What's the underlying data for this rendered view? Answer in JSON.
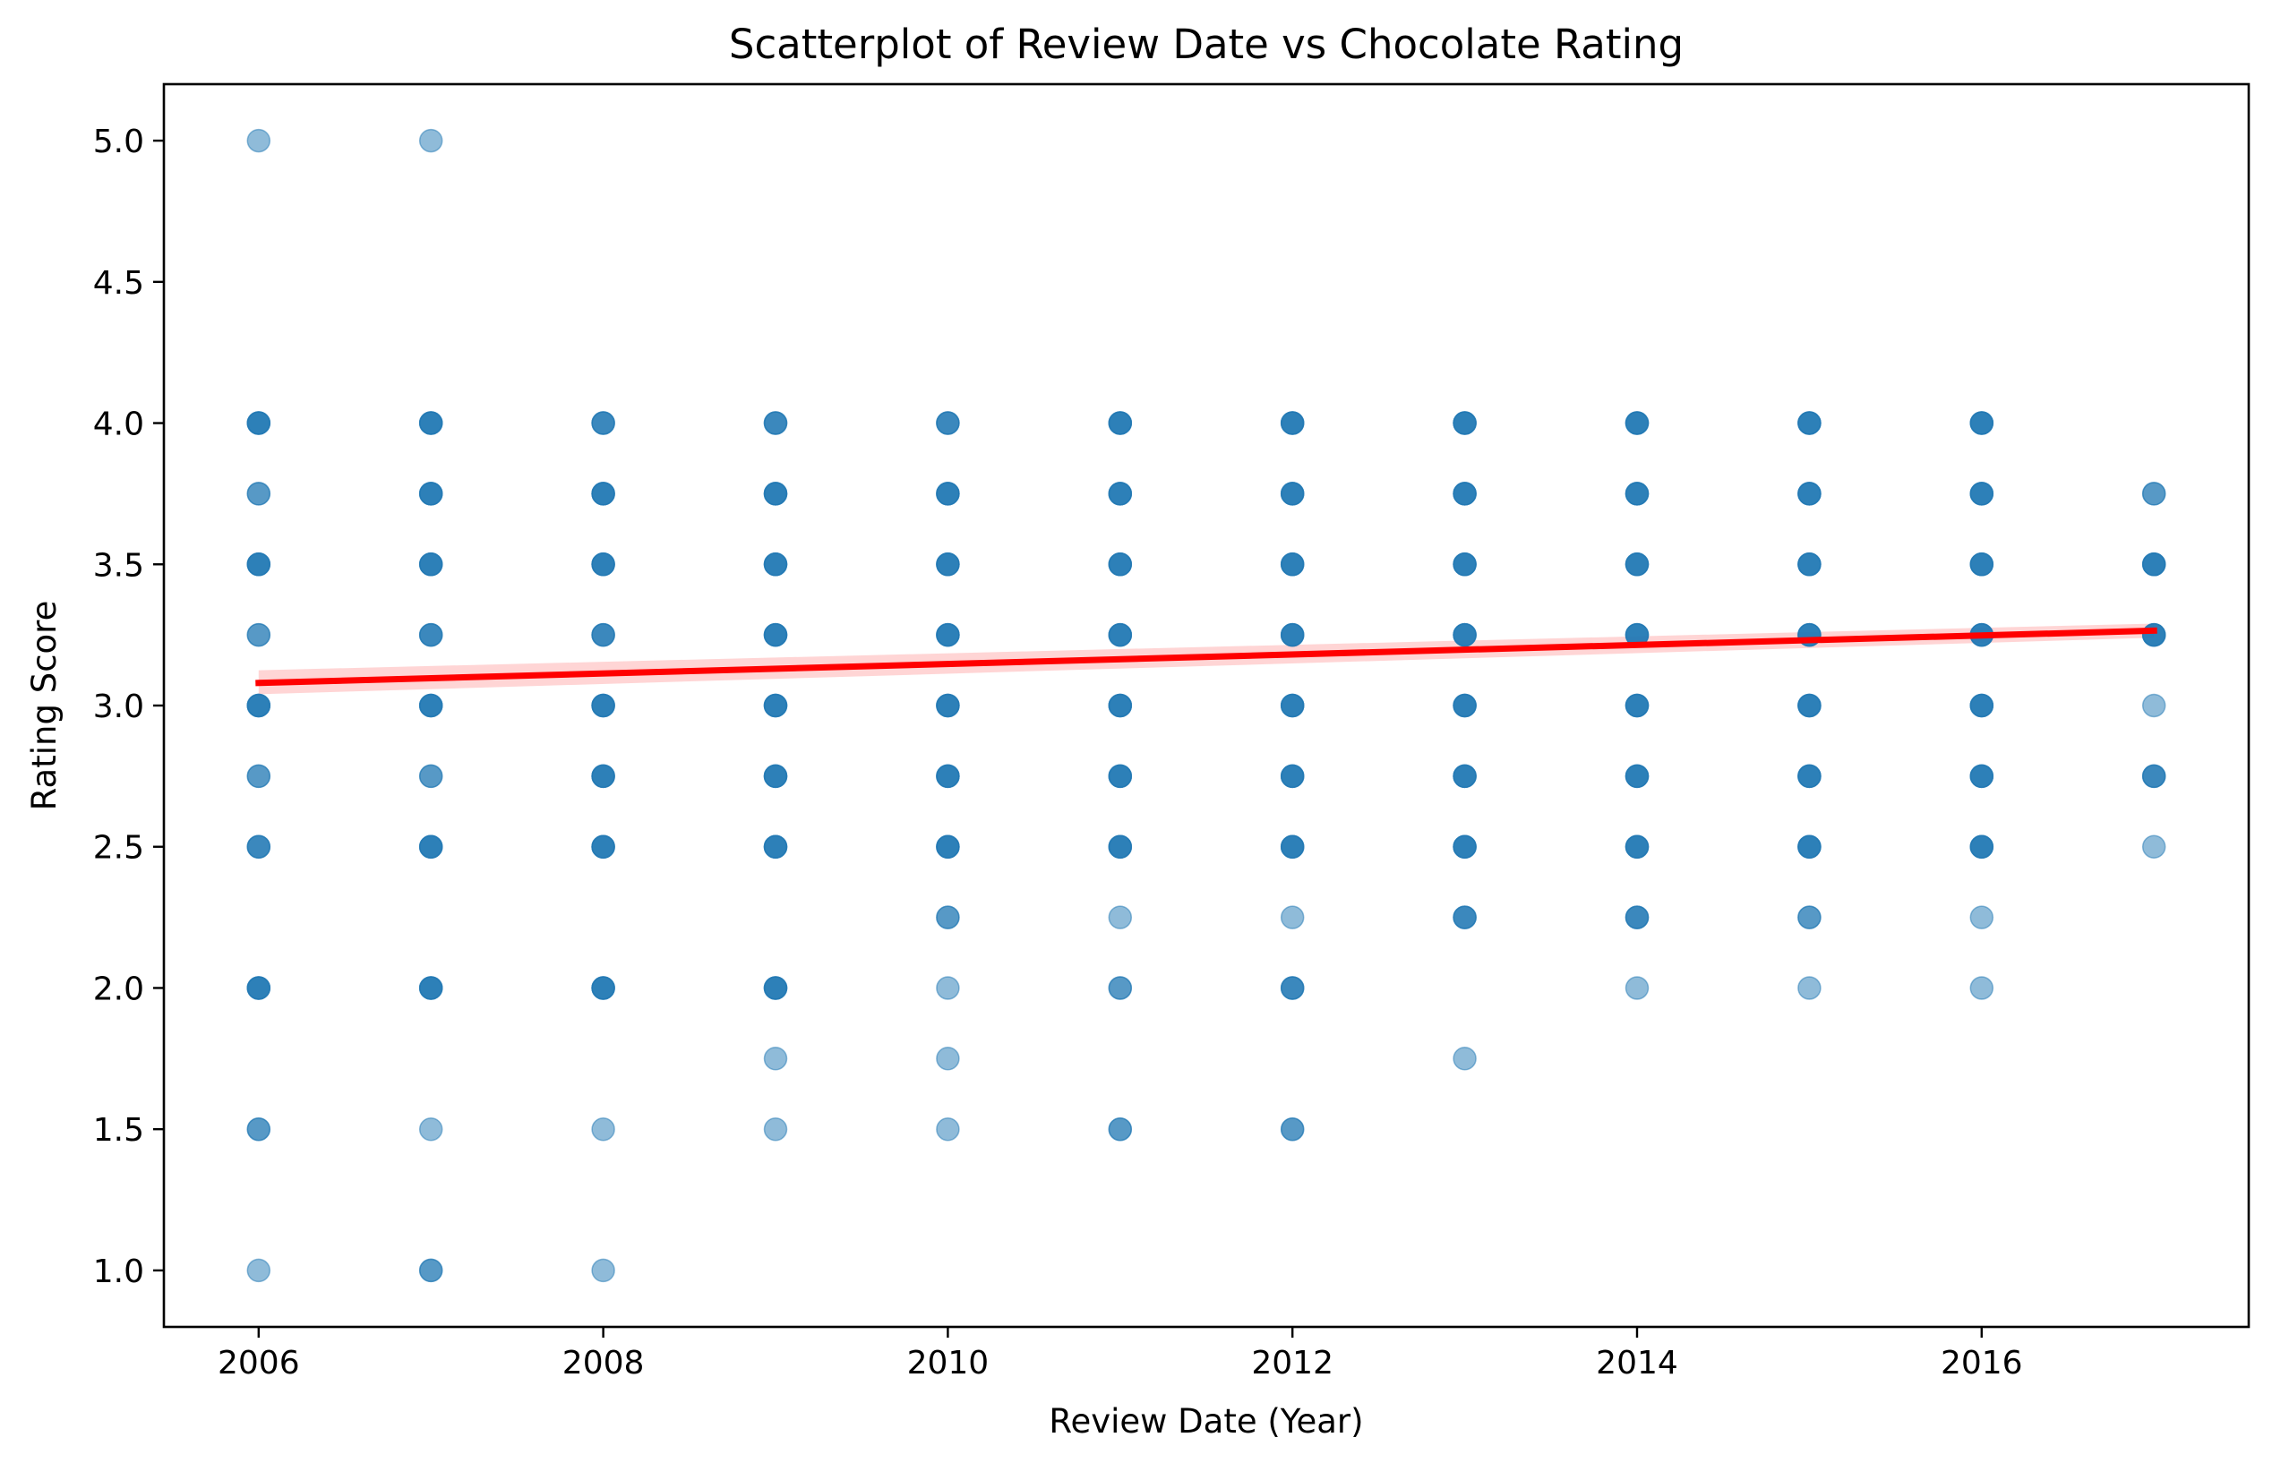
{
  "chart_data": {
    "type": "scatter",
    "title": "Scatterplot of Review Date vs Chocolate Rating",
    "xlabel": "Review Date (Year)",
    "ylabel": "Rating Score",
    "xlim": [
      2005.45,
      2017.55
    ],
    "ylim": [
      0.8,
      5.2
    ],
    "x_ticks": [
      2006,
      2008,
      2010,
      2012,
      2014,
      2016
    ],
    "y_ticks": [
      "1.0",
      "1.5",
      "2.0",
      "2.5",
      "3.0",
      "3.5",
      "4.0",
      "4.5",
      "5.0"
    ],
    "grid": false,
    "legend": "none",
    "point_color": "#1f77b4",
    "point_alpha": 0.5,
    "series": [
      {
        "values": [
          {
            "x": 2006,
            "y": 5.0,
            "n": 1
          },
          {
            "x": 2006,
            "y": 4.0,
            "n": 4
          },
          {
            "x": 2006,
            "y": 3.75,
            "n": 2
          },
          {
            "x": 2006,
            "y": 3.5,
            "n": 4
          },
          {
            "x": 2006,
            "y": 3.25,
            "n": 2
          },
          {
            "x": 2006,
            "y": 3.0,
            "n": 4
          },
          {
            "x": 2006,
            "y": 2.75,
            "n": 2
          },
          {
            "x": 2006,
            "y": 2.5,
            "n": 3
          },
          {
            "x": 2006,
            "y": 2.0,
            "n": 4
          },
          {
            "x": 2006,
            "y": 1.5,
            "n": 2
          },
          {
            "x": 2006,
            "y": 1.0,
            "n": 1
          },
          {
            "x": 2007,
            "y": 5.0,
            "n": 1
          },
          {
            "x": 2007,
            "y": 4.0,
            "n": 4
          },
          {
            "x": 2007,
            "y": 3.75,
            "n": 4
          },
          {
            "x": 2007,
            "y": 3.5,
            "n": 4
          },
          {
            "x": 2007,
            "y": 3.25,
            "n": 3
          },
          {
            "x": 2007,
            "y": 3.0,
            "n": 4
          },
          {
            "x": 2007,
            "y": 2.75,
            "n": 2
          },
          {
            "x": 2007,
            "y": 2.5,
            "n": 4
          },
          {
            "x": 2007,
            "y": 2.0,
            "n": 4
          },
          {
            "x": 2007,
            "y": 1.5,
            "n": 1
          },
          {
            "x": 2007,
            "y": 1.0,
            "n": 2
          },
          {
            "x": 2008,
            "y": 4.0,
            "n": 3
          },
          {
            "x": 2008,
            "y": 3.75,
            "n": 4
          },
          {
            "x": 2008,
            "y": 3.5,
            "n": 4
          },
          {
            "x": 2008,
            "y": 3.25,
            "n": 3
          },
          {
            "x": 2008,
            "y": 3.0,
            "n": 4
          },
          {
            "x": 2008,
            "y": 2.75,
            "n": 4
          },
          {
            "x": 2008,
            "y": 2.5,
            "n": 4
          },
          {
            "x": 2008,
            "y": 2.0,
            "n": 4
          },
          {
            "x": 2008,
            "y": 1.5,
            "n": 1
          },
          {
            "x": 2008,
            "y": 1.0,
            "n": 1
          },
          {
            "x": 2009,
            "y": 4.0,
            "n": 3
          },
          {
            "x": 2009,
            "y": 3.75,
            "n": 4
          },
          {
            "x": 2009,
            "y": 3.5,
            "n": 4
          },
          {
            "x": 2009,
            "y": 3.25,
            "n": 4
          },
          {
            "x": 2009,
            "y": 3.0,
            "n": 4
          },
          {
            "x": 2009,
            "y": 2.75,
            "n": 4
          },
          {
            "x": 2009,
            "y": 2.5,
            "n": 4
          },
          {
            "x": 2009,
            "y": 2.0,
            "n": 4
          },
          {
            "x": 2009,
            "y": 1.75,
            "n": 1
          },
          {
            "x": 2009,
            "y": 1.5,
            "n": 1
          },
          {
            "x": 2010,
            "y": 4.0,
            "n": 3
          },
          {
            "x": 2010,
            "y": 3.75,
            "n": 4
          },
          {
            "x": 2010,
            "y": 3.5,
            "n": 4
          },
          {
            "x": 2010,
            "y": 3.25,
            "n": 4
          },
          {
            "x": 2010,
            "y": 3.0,
            "n": 4
          },
          {
            "x": 2010,
            "y": 2.75,
            "n": 4
          },
          {
            "x": 2010,
            "y": 2.5,
            "n": 4
          },
          {
            "x": 2010,
            "y": 2.25,
            "n": 2
          },
          {
            "x": 2010,
            "y": 2.0,
            "n": 1
          },
          {
            "x": 2010,
            "y": 1.75,
            "n": 1
          },
          {
            "x": 2010,
            "y": 1.5,
            "n": 1
          },
          {
            "x": 2011,
            "y": 4.0,
            "n": 4
          },
          {
            "x": 2011,
            "y": 3.75,
            "n": 4
          },
          {
            "x": 2011,
            "y": 3.5,
            "n": 4
          },
          {
            "x": 2011,
            "y": 3.25,
            "n": 4
          },
          {
            "x": 2011,
            "y": 3.0,
            "n": 4
          },
          {
            "x": 2011,
            "y": 2.75,
            "n": 4
          },
          {
            "x": 2011,
            "y": 2.5,
            "n": 4
          },
          {
            "x": 2011,
            "y": 2.25,
            "n": 1
          },
          {
            "x": 2011,
            "y": 2.0,
            "n": 2
          },
          {
            "x": 2011,
            "y": 1.5,
            "n": 2
          },
          {
            "x": 2012,
            "y": 4.0,
            "n": 4
          },
          {
            "x": 2012,
            "y": 3.75,
            "n": 4
          },
          {
            "x": 2012,
            "y": 3.5,
            "n": 4
          },
          {
            "x": 2012,
            "y": 3.25,
            "n": 4
          },
          {
            "x": 2012,
            "y": 3.0,
            "n": 4
          },
          {
            "x": 2012,
            "y": 2.75,
            "n": 4
          },
          {
            "x": 2012,
            "y": 2.5,
            "n": 4
          },
          {
            "x": 2012,
            "y": 2.25,
            "n": 1
          },
          {
            "x": 2012,
            "y": 2.0,
            "n": 3
          },
          {
            "x": 2012,
            "y": 1.5,
            "n": 2
          },
          {
            "x": 2013,
            "y": 4.0,
            "n": 4
          },
          {
            "x": 2013,
            "y": 3.75,
            "n": 4
          },
          {
            "x": 2013,
            "y": 3.5,
            "n": 4
          },
          {
            "x": 2013,
            "y": 3.25,
            "n": 4
          },
          {
            "x": 2013,
            "y": 3.0,
            "n": 4
          },
          {
            "x": 2013,
            "y": 2.75,
            "n": 4
          },
          {
            "x": 2013,
            "y": 2.5,
            "n": 4
          },
          {
            "x": 2013,
            "y": 2.25,
            "n": 3
          },
          {
            "x": 2013,
            "y": 1.75,
            "n": 1
          },
          {
            "x": 2014,
            "y": 4.0,
            "n": 4
          },
          {
            "x": 2014,
            "y": 3.75,
            "n": 4
          },
          {
            "x": 2014,
            "y": 3.5,
            "n": 4
          },
          {
            "x": 2014,
            "y": 3.25,
            "n": 4
          },
          {
            "x": 2014,
            "y": 3.0,
            "n": 4
          },
          {
            "x": 2014,
            "y": 2.75,
            "n": 4
          },
          {
            "x": 2014,
            "y": 2.5,
            "n": 4
          },
          {
            "x": 2014,
            "y": 2.25,
            "n": 3
          },
          {
            "x": 2014,
            "y": 2.0,
            "n": 1
          },
          {
            "x": 2015,
            "y": 4.0,
            "n": 4
          },
          {
            "x": 2015,
            "y": 3.75,
            "n": 4
          },
          {
            "x": 2015,
            "y": 3.5,
            "n": 4
          },
          {
            "x": 2015,
            "y": 3.25,
            "n": 4
          },
          {
            "x": 2015,
            "y": 3.0,
            "n": 4
          },
          {
            "x": 2015,
            "y": 2.75,
            "n": 4
          },
          {
            "x": 2015,
            "y": 2.5,
            "n": 4
          },
          {
            "x": 2015,
            "y": 2.25,
            "n": 2
          },
          {
            "x": 2015,
            "y": 2.0,
            "n": 1
          },
          {
            "x": 2016,
            "y": 4.0,
            "n": 4
          },
          {
            "x": 2016,
            "y": 3.75,
            "n": 4
          },
          {
            "x": 2016,
            "y": 3.5,
            "n": 4
          },
          {
            "x": 2016,
            "y": 3.25,
            "n": 4
          },
          {
            "x": 2016,
            "y": 3.0,
            "n": 4
          },
          {
            "x": 2016,
            "y": 2.75,
            "n": 4
          },
          {
            "x": 2016,
            "y": 2.5,
            "n": 4
          },
          {
            "x": 2016,
            "y": 2.25,
            "n": 1
          },
          {
            "x": 2016,
            "y": 2.0,
            "n": 1
          },
          {
            "x": 2017,
            "y": 3.75,
            "n": 2
          },
          {
            "x": 2017,
            "y": 3.5,
            "n": 4
          },
          {
            "x": 2017,
            "y": 3.25,
            "n": 4
          },
          {
            "x": 2017,
            "y": 3.0,
            "n": 1
          },
          {
            "x": 2017,
            "y": 2.75,
            "n": 3
          },
          {
            "x": 2017,
            "y": 2.5,
            "n": 1
          }
        ]
      }
    ],
    "regression": {
      "color": "#ff0000",
      "band_color": "#ffb3b3",
      "x_range": [
        2006,
        2017
      ],
      "y_start": 3.08,
      "y_end": 3.265,
      "ci_start": [
        3.04,
        3.125
      ],
      "ci_end": [
        3.24,
        3.29
      ]
    }
  }
}
